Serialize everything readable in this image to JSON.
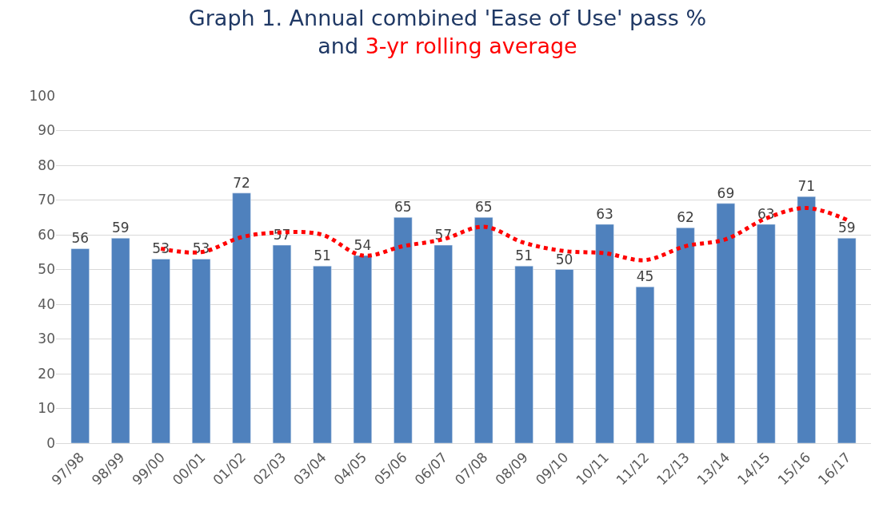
{
  "chart_data": {
    "type": "bar",
    "title": "Graph 1. Annual combined 'Ease of Use' pass %\nand 3-yr rolling average",
    "categories": [
      "97/98",
      "98/99",
      "99/00",
      "00/01",
      "01/02",
      "02/03",
      "03/04",
      "04/05",
      "05/06",
      "06/07",
      "07/08",
      "08/09",
      "09/10",
      "10/11",
      "11/12",
      "12/13",
      "13/14",
      "14/15",
      "15/16",
      "16/17"
    ],
    "series": [
      {
        "color": "#4f81bd",
        "values": [
          56,
          59,
          53,
          53,
          72,
          57,
          51,
          54,
          65,
          57,
          65,
          51,
          50,
          63,
          45,
          62,
          69,
          63,
          71,
          59
        ],
        "data_labels": true
      },
      {
        "type": "line",
        "color": "#ff0000",
        "line_style": "dotted",
        "values": [
          null,
          null,
          56,
          55,
          59.3,
          60.7,
          60,
          54,
          56.7,
          58.7,
          62.3,
          57.7,
          55.3,
          54.7,
          52.7,
          56.7,
          58.7,
          64.7,
          67.7,
          64.3
        ]
      }
    ],
    "ylim": [
      0,
      100
    ],
    "yticks": [
      0,
      10,
      20,
      30,
      40,
      50,
      60,
      70,
      80,
      90,
      100
    ],
    "grid": "y"
  }
}
